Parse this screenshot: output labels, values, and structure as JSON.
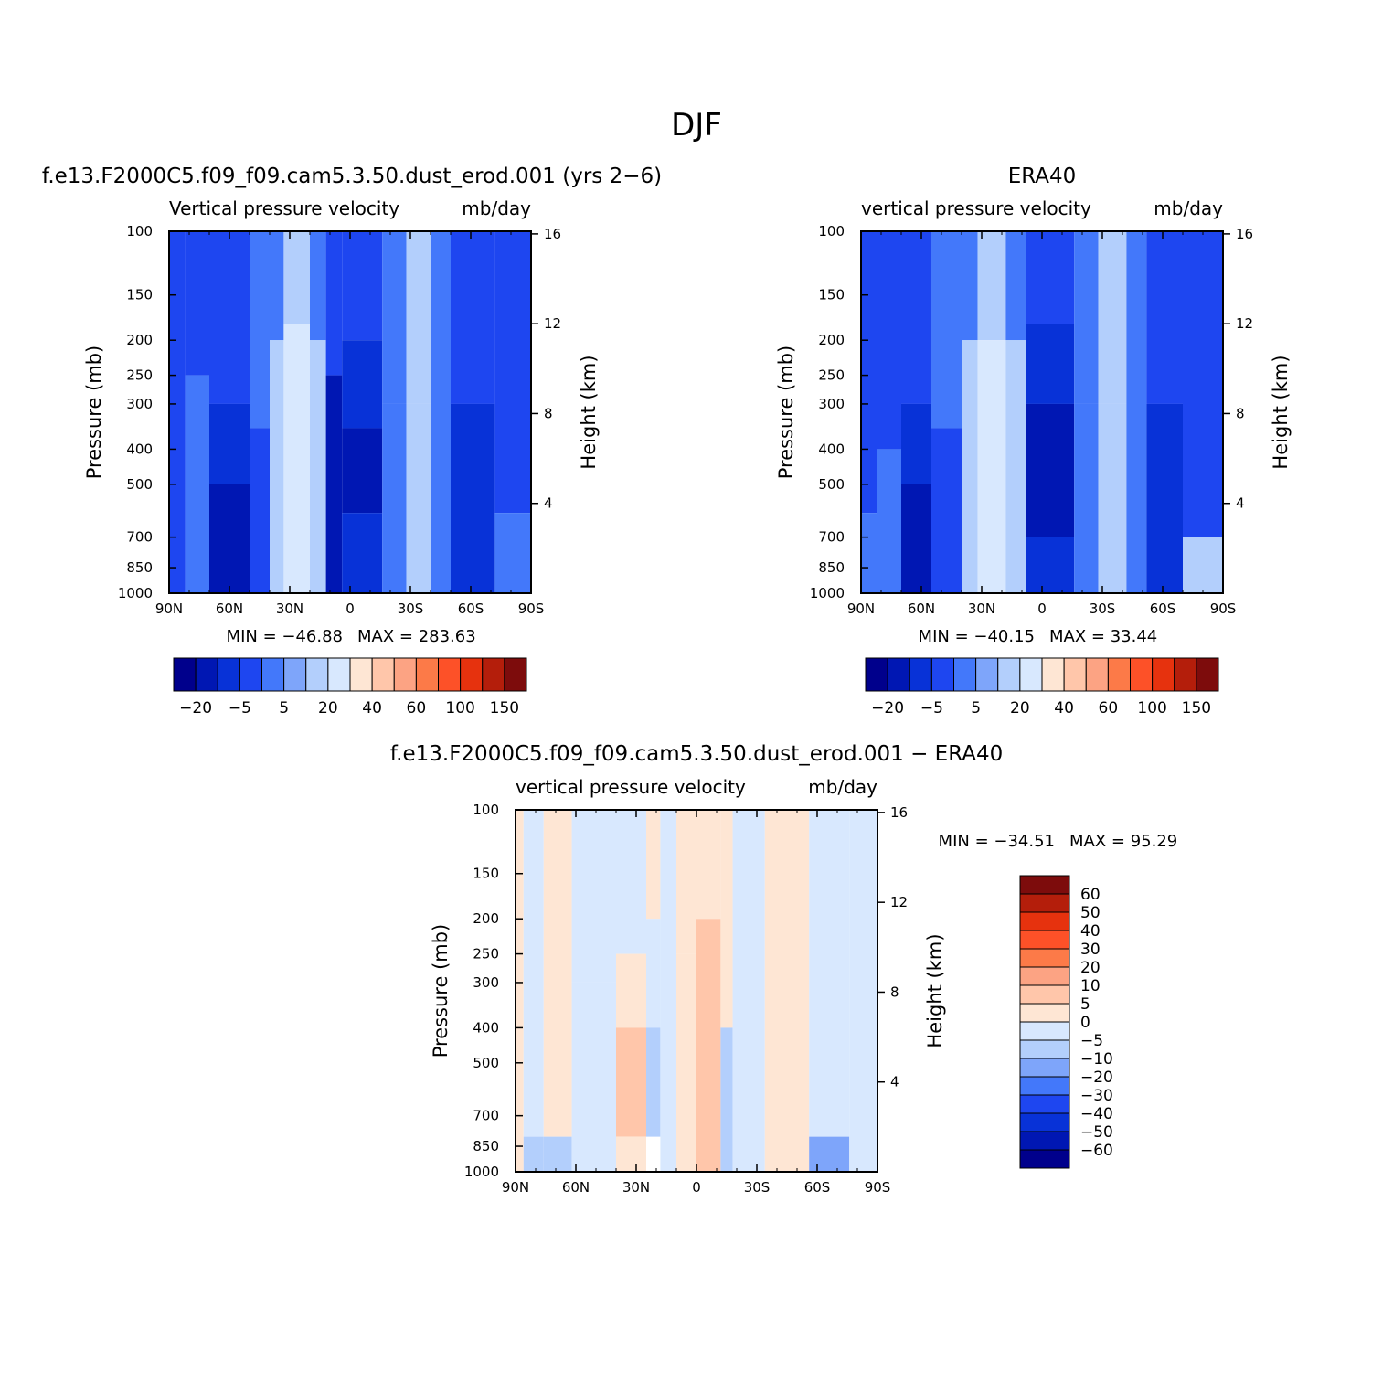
{
  "page_title": "DJF",
  "chart_data": [
    {
      "type": "heatmap",
      "title": "f.e13.F2000C5.f09_f09.cam5.3.50.dust_erod.001 (yrs 2−6)",
      "subtitle_left": "Vertical pressure velocity",
      "subtitle_right": "mb/day",
      "ylabel": "Pressure (mb)",
      "y2label": "Height (km)",
      "min_label": "MIN = −46.88",
      "max_label": "MAX = 283.63",
      "x_ticks": [
        {
          "v": 90,
          "label": "90N"
        },
        {
          "v": 60,
          "label": "60N"
        },
        {
          "v": 30,
          "label": "30N"
        },
        {
          "v": 0,
          "label": "0"
        },
        {
          "v": -30,
          "label": "30S"
        },
        {
          "v": -60,
          "label": "60S"
        },
        {
          "v": -90,
          "label": "90S"
        }
      ],
      "y_ticks": [
        {
          "v": 100,
          "label": "100"
        },
        {
          "v": 150,
          "label": "150"
        },
        {
          "v": 200,
          "label": "200"
        },
        {
          "v": 250,
          "label": "250"
        },
        {
          "v": 300,
          "label": "300"
        },
        {
          "v": 400,
          "label": "400"
        },
        {
          "v": 500,
          "label": "500"
        },
        {
          "v": 700,
          "label": "700"
        },
        {
          "v": 850,
          "label": "850"
        },
        {
          "v": 1000,
          "label": "1000"
        }
      ],
      "y2_ticks": [
        {
          "v": 16,
          "label": "16"
        },
        {
          "v": 12,
          "label": "12"
        },
        {
          "v": 8,
          "label": "8"
        },
        {
          "v": 4,
          "label": "4"
        }
      ],
      "colorbar_labels": [
        "−20",
        "−5",
        "5",
        "20",
        "40",
        "60",
        "100",
        "150"
      ],
      "columns": [
        {
          "x0": 90,
          "x1": 82,
          "levels": [
            [
              100,
              1000,
              -10
            ]
          ]
        },
        {
          "x0": 82,
          "x1": 70,
          "levels": [
            [
              100,
              250,
              -10
            ],
            [
              250,
              1000,
              -5
            ]
          ]
        },
        {
          "x0": 70,
          "x1": 50,
          "levels": [
            [
              100,
              300,
              -10
            ],
            [
              300,
              500,
              -20
            ],
            [
              500,
              1000,
              -30
            ]
          ]
        },
        {
          "x0": 50,
          "x1": 40,
          "levels": [
            [
              100,
              350,
              -5
            ],
            [
              350,
              1000,
              -10
            ]
          ]
        },
        {
          "x0": 40,
          "x1": 33,
          "levels": [
            [
              100,
              200,
              -5
            ],
            [
              200,
              1000,
              5
            ]
          ]
        },
        {
          "x0": 33,
          "x1": 20,
          "levels": [
            [
              100,
              180,
              5
            ],
            [
              180,
              1000,
              10
            ]
          ]
        },
        {
          "x0": 20,
          "x1": 12,
          "levels": [
            [
              100,
              200,
              -5
            ],
            [
              200,
              1000,
              5
            ]
          ]
        },
        {
          "x0": 12,
          "x1": 4,
          "levels": [
            [
              100,
              250,
              -10
            ],
            [
              250,
              1000,
              -30
            ]
          ]
        },
        {
          "x0": 4,
          "x1": -16,
          "levels": [
            [
              100,
              200,
              -10
            ],
            [
              200,
              350,
              -20
            ],
            [
              350,
              600,
              -30
            ],
            [
              600,
              1000,
              -20
            ]
          ]
        },
        {
          "x0": -16,
          "x1": -28,
          "levels": [
            [
              100,
              300,
              -5
            ],
            [
              300,
              1000,
              -5
            ]
          ]
        },
        {
          "x0": -28,
          "x1": -40,
          "levels": [
            [
              100,
              300,
              5
            ],
            [
              300,
              1000,
              5
            ]
          ]
        },
        {
          "x0": -40,
          "x1": -50,
          "levels": [
            [
              100,
              1000,
              -5
            ]
          ]
        },
        {
          "x0": -50,
          "x1": -72,
          "levels": [
            [
              100,
              300,
              -10
            ],
            [
              300,
              1000,
              -20
            ]
          ]
        },
        {
          "x0": -72,
          "x1": -90,
          "levels": [
            [
              100,
              600,
              -10
            ],
            [
              600,
              1000,
              -5
            ]
          ]
        }
      ]
    },
    {
      "type": "heatmap",
      "title": "ERA40",
      "subtitle_left": "vertical pressure velocity",
      "subtitle_right": "mb/day",
      "ylabel": "Pressure (mb)",
      "y2label": "Height (km)",
      "min_label": "MIN = −40.15",
      "max_label": "MAX = 33.44",
      "x_ticks": [
        {
          "v": 90,
          "label": "90N"
        },
        {
          "v": 60,
          "label": "60N"
        },
        {
          "v": 30,
          "label": "30N"
        },
        {
          "v": 0,
          "label": "0"
        },
        {
          "v": -30,
          "label": "30S"
        },
        {
          "v": -60,
          "label": "60S"
        },
        {
          "v": -90,
          "label": "90S"
        }
      ],
      "y_ticks": [
        {
          "v": 100,
          "label": "100"
        },
        {
          "v": 150,
          "label": "150"
        },
        {
          "v": 200,
          "label": "200"
        },
        {
          "v": 250,
          "label": "250"
        },
        {
          "v": 300,
          "label": "300"
        },
        {
          "v": 400,
          "label": "400"
        },
        {
          "v": 500,
          "label": "500"
        },
        {
          "v": 700,
          "label": "700"
        },
        {
          "v": 850,
          "label": "850"
        },
        {
          "v": 1000,
          "label": "1000"
        }
      ],
      "y2_ticks": [
        {
          "v": 16,
          "label": "16"
        },
        {
          "v": 12,
          "label": "12"
        },
        {
          "v": 8,
          "label": "8"
        },
        {
          "v": 4,
          "label": "4"
        }
      ],
      "colorbar_labels": [
        "−20",
        "−5",
        "5",
        "20",
        "40",
        "60",
        "100",
        "150"
      ],
      "columns": [
        {
          "x0": 90,
          "x1": 82,
          "levels": [
            [
              100,
              600,
              -10
            ],
            [
              600,
              1000,
              -5
            ]
          ]
        },
        {
          "x0": 82,
          "x1": 70,
          "levels": [
            [
              100,
              400,
              -10
            ],
            [
              400,
              1000,
              -5
            ]
          ]
        },
        {
          "x0": 70,
          "x1": 55,
          "levels": [
            [
              100,
              300,
              -10
            ],
            [
              300,
              500,
              -20
            ],
            [
              500,
              1000,
              -30
            ]
          ]
        },
        {
          "x0": 55,
          "x1": 40,
          "levels": [
            [
              100,
              350,
              -5
            ],
            [
              350,
              1000,
              -10
            ]
          ]
        },
        {
          "x0": 40,
          "x1": 32,
          "levels": [
            [
              100,
              200,
              -5
            ],
            [
              200,
              1000,
              5
            ]
          ]
        },
        {
          "x0": 32,
          "x1": 18,
          "levels": [
            [
              100,
              200,
              5
            ],
            [
              200,
              1000,
              10
            ]
          ]
        },
        {
          "x0": 18,
          "x1": 8,
          "levels": [
            [
              100,
              200,
              -5
            ],
            [
              200,
              1000,
              5
            ]
          ]
        },
        {
          "x0": 8,
          "x1": -16,
          "levels": [
            [
              100,
              180,
              -10
            ],
            [
              180,
              300,
              -20
            ],
            [
              300,
              700,
              -30
            ],
            [
              700,
              1000,
              -20
            ]
          ]
        },
        {
          "x0": -16,
          "x1": -28,
          "levels": [
            [
              100,
              300,
              -5
            ],
            [
              300,
              1000,
              -5
            ]
          ]
        },
        {
          "x0": -28,
          "x1": -42,
          "levels": [
            [
              100,
              300,
              5
            ],
            [
              300,
              1000,
              5
            ]
          ]
        },
        {
          "x0": -42,
          "x1": -52,
          "levels": [
            [
              100,
              1000,
              -5
            ]
          ]
        },
        {
          "x0": -52,
          "x1": -70,
          "levels": [
            [
              100,
              300,
              -10
            ],
            [
              300,
              1000,
              -20
            ]
          ]
        },
        {
          "x0": -70,
          "x1": -90,
          "levels": [
            [
              100,
              700,
              -10
            ],
            [
              700,
              1000,
              5
            ]
          ]
        }
      ]
    },
    {
      "type": "heatmap",
      "title": "f.e13.F2000C5.f09_f09.cam5.3.50.dust_erod.001 − ERA40",
      "subtitle_left": "vertical pressure velocity",
      "subtitle_right": "mb/day",
      "ylabel": "Pressure (mb)",
      "y2label": "Height (km)",
      "min_label": "MIN = −34.51",
      "max_label": "MAX = 95.29",
      "x_ticks": [
        {
          "v": 90,
          "label": "90N"
        },
        {
          "v": 60,
          "label": "60N"
        },
        {
          "v": 30,
          "label": "30N"
        },
        {
          "v": 0,
          "label": "0"
        },
        {
          "v": -30,
          "label": "30S"
        },
        {
          "v": -60,
          "label": "60S"
        },
        {
          "v": -90,
          "label": "90S"
        }
      ],
      "y_ticks": [
        {
          "v": 100,
          "label": "100"
        },
        {
          "v": 150,
          "label": "150"
        },
        {
          "v": 200,
          "label": "200"
        },
        {
          "v": 250,
          "label": "250"
        },
        {
          "v": 300,
          "label": "300"
        },
        {
          "v": 400,
          "label": "400"
        },
        {
          "v": 500,
          "label": "500"
        },
        {
          "v": 700,
          "label": "700"
        },
        {
          "v": 850,
          "label": "850"
        },
        {
          "v": 1000,
          "label": "1000"
        }
      ],
      "y2_ticks": [
        {
          "v": 16,
          "label": "16"
        },
        {
          "v": 12,
          "label": "12"
        },
        {
          "v": 8,
          "label": "8"
        },
        {
          "v": 4,
          "label": "4"
        }
      ],
      "colorbar_labels": [
        "60",
        "50",
        "40",
        "30",
        "20",
        "10",
        "5",
        "0",
        "−5",
        "−10",
        "−20",
        "−30",
        "−40",
        "−50",
        "−60"
      ],
      "columns": [
        {
          "x0": 90,
          "x1": 86,
          "levels": [
            [
              100,
              1000,
              2
            ]
          ]
        },
        {
          "x0": 86,
          "x1": 76,
          "levels": [
            [
              100,
              800,
              -2
            ],
            [
              800,
              1000,
              -10
            ]
          ]
        },
        {
          "x0": 76,
          "x1": 62,
          "levels": [
            [
              100,
              800,
              2
            ],
            [
              800,
              1000,
              -7
            ]
          ]
        },
        {
          "x0": 62,
          "x1": 40,
          "levels": [
            [
              100,
              300,
              -2
            ],
            [
              300,
              1000,
              -2
            ]
          ]
        },
        {
          "x0": 40,
          "x1": 25,
          "levels": [
            [
              100,
              250,
              -2
            ],
            [
              250,
              400,
              2
            ],
            [
              400,
              800,
              7
            ],
            [
              800,
              1000,
              2
            ]
          ]
        },
        {
          "x0": 25,
          "x1": 18,
          "levels": [
            [
              100,
              200,
              2
            ],
            [
              200,
              400,
              -2
            ],
            [
              400,
              800,
              -7
            ]
          ]
        },
        {
          "x0": 18,
          "x1": 10,
          "levels": [
            [
              100,
              1000,
              -2
            ]
          ]
        },
        {
          "x0": 10,
          "x1": 0,
          "levels": [
            [
              100,
              250,
              2
            ],
            [
              250,
              1000,
              2
            ]
          ]
        },
        {
          "x0": 0,
          "x1": -12,
          "levels": [
            [
              100,
              200,
              2
            ],
            [
              200,
              1000,
              7
            ]
          ]
        },
        {
          "x0": -12,
          "x1": -18,
          "levels": [
            [
              100,
              400,
              2
            ],
            [
              400,
              1000,
              -7
            ]
          ]
        },
        {
          "x0": -18,
          "x1": -34,
          "levels": [
            [
              100,
              1000,
              -2
            ]
          ]
        },
        {
          "x0": -34,
          "x1": -56,
          "levels": [
            [
              100,
              1000,
              2
            ]
          ]
        },
        {
          "x0": -56,
          "x1": -76,
          "levels": [
            [
              100,
              800,
              -2
            ],
            [
              800,
              1000,
              -15
            ]
          ]
        },
        {
          "x0": -76,
          "x1": -90,
          "levels": [
            [
              100,
              1000,
              -2
            ]
          ]
        }
      ]
    }
  ],
  "colors": {
    "main_scale": [
      "#00008c",
      "#0017b3",
      "#0832d7",
      "#1e46f0",
      "#4378fa",
      "#7ea5fa",
      "#b3cffc",
      "#d8e8fe",
      "#fee6d4",
      "#ffc6aa",
      "#fca383",
      "#fc7a48",
      "#fd5128",
      "#e6320e",
      "#b41e0b",
      "#7d0c0c"
    ],
    "diff_scale": [
      "#7d0c0c",
      "#b41e0b",
      "#e6320e",
      "#fd5128",
      "#fc7a48",
      "#fca383",
      "#ffc6aa",
      "#fee6d4",
      "#d8e8fe",
      "#b3cffc",
      "#7ea5fa",
      "#4378fa",
      "#1e46f0",
      "#0832d7",
      "#0017b3",
      "#00008c"
    ]
  }
}
